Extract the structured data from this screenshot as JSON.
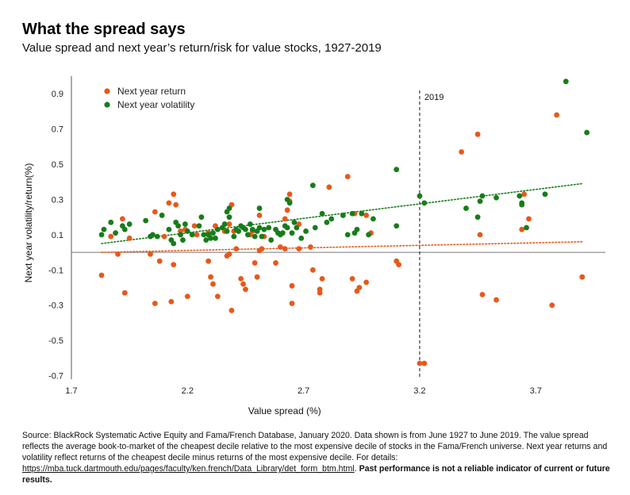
{
  "title": "What the spread says",
  "subtitle": "Value spread and next year’s return/risk for value stocks, 1927-2019",
  "source": {
    "text": "Source: BlackRock Systematic Active Equity and Fama/French Database, January 2020. Data shown is from June 1927 to June 2019. The value spread reflects the average book-to-market of the cheapest decile relative to the most expensive decile of stocks in the Fama/French universe. Next year returns and volatility reflect returns of the cheapest decile minus returns of the most expensive decile. For details: ",
    "link": "https://mba.tuck.dartmouth.edu/pages/faculty/ken.french/Data_Library/det_form_btm.html",
    "link_suffix": ". ",
    "disclaimer": "Past performance is not a reliable indicator of current or future results."
  },
  "chart_data": {
    "type": "scatter",
    "xlabel": "Value spread (%)",
    "ylabel": "Next year volatility/return(%)",
    "xlim": [
      1.7,
      4.0
    ],
    "ylim": [
      -0.72,
      1.0
    ],
    "xticks": [
      1.7,
      2.2,
      2.7,
      3.2,
      3.7
    ],
    "xtick_labels": [
      "1.7",
      "2.2",
      "2.7",
      "3.2",
      "3.7"
    ],
    "yticks": [
      0.9,
      0.7,
      0.5,
      0.3,
      0.1,
      -0.1,
      -0.3,
      -0.5,
      -0.7
    ],
    "ytick_labels": [
      "0.9",
      "0.7",
      "0.5",
      "0.3",
      "0.1",
      "-0.1",
      "-0.3",
      "-0.5",
      "-0.7"
    ],
    "grid": false,
    "zero_line": true,
    "legend_position": "top-left",
    "annotation": {
      "x": 3.2,
      "label": "2019",
      "style": "dashed vertical line"
    },
    "series": [
      {
        "name": "Next year return",
        "color": "#e8581b",
        "trend": {
          "type": "linear",
          "style": "dotted",
          "start": [
            1.83,
            0.0
          ],
          "end": [
            3.9,
            0.06
          ]
        },
        "points": [
          [
            1.83,
            -0.13
          ],
          [
            1.87,
            0.09
          ],
          [
            1.9,
            -0.01
          ],
          [
            1.92,
            0.19
          ],
          [
            1.93,
            -0.23
          ],
          [
            1.95,
            0.08
          ],
          [
            2.04,
            -0.01
          ],
          [
            2.06,
            0.23
          ],
          [
            2.06,
            -0.29
          ],
          [
            2.08,
            -0.05
          ],
          [
            2.1,
            0.09
          ],
          [
            2.12,
            0.28
          ],
          [
            2.13,
            -0.28
          ],
          [
            2.14,
            0.33
          ],
          [
            2.14,
            -0.07
          ],
          [
            2.15,
            0.27
          ],
          [
            2.17,
            0.12
          ],
          [
            2.19,
            0.13
          ],
          [
            2.2,
            -0.25
          ],
          [
            2.23,
            0.15
          ],
          [
            2.24,
            0.1
          ],
          [
            2.29,
            0.11
          ],
          [
            2.29,
            -0.05
          ],
          [
            2.3,
            -0.14
          ],
          [
            2.31,
            -0.18
          ],
          [
            2.32,
            0.15
          ],
          [
            2.33,
            -0.25
          ],
          [
            2.36,
            0.12
          ],
          [
            2.37,
            -0.02
          ],
          [
            2.38,
            -0.01
          ],
          [
            2.38,
            0.16
          ],
          [
            2.39,
            -0.33
          ],
          [
            2.39,
            0.27
          ],
          [
            2.4,
            0.12
          ],
          [
            2.41,
            0.02
          ],
          [
            2.43,
            -0.15
          ],
          [
            2.44,
            -0.18
          ],
          [
            2.45,
            -0.21
          ],
          [
            2.47,
            0.1
          ],
          [
            2.48,
            0.12
          ],
          [
            2.49,
            -0.06
          ],
          [
            2.5,
            -0.14
          ],
          [
            2.51,
            0.21
          ],
          [
            2.51,
            0.01
          ],
          [
            2.52,
            0.02
          ],
          [
            2.53,
            0.09
          ],
          [
            2.58,
            -0.06
          ],
          [
            2.6,
            0.03
          ],
          [
            2.62,
            0.19
          ],
          [
            2.62,
            0.02
          ],
          [
            2.63,
            0.24
          ],
          [
            2.64,
            0.29
          ],
          [
            2.64,
            0.33
          ],
          [
            2.65,
            -0.29
          ],
          [
            2.65,
            -0.19
          ],
          [
            2.68,
            0.16
          ],
          [
            2.68,
            0.02
          ],
          [
            2.73,
            0.03
          ],
          [
            2.74,
            -0.1
          ],
          [
            2.77,
            -0.23
          ],
          [
            2.77,
            -0.21
          ],
          [
            2.78,
            -0.15
          ],
          [
            2.81,
            0.37
          ],
          [
            2.89,
            0.43
          ],
          [
            2.91,
            -0.15
          ],
          [
            2.92,
            0.22
          ],
          [
            2.93,
            -0.22
          ],
          [
            2.94,
            -0.2
          ],
          [
            2.97,
            0.21
          ],
          [
            2.97,
            -0.17
          ],
          [
            2.99,
            0.11
          ],
          [
            3.1,
            -0.05
          ],
          [
            3.11,
            -0.07
          ],
          [
            3.2,
            -0.63
          ],
          [
            3.22,
            -0.63
          ],
          [
            3.38,
            0.57
          ],
          [
            3.45,
            0.67
          ],
          [
            3.46,
            0.1
          ],
          [
            3.47,
            -0.24
          ],
          [
            3.53,
            -0.27
          ],
          [
            3.64,
            0.13
          ],
          [
            3.65,
            0.33
          ],
          [
            3.67,
            0.19
          ],
          [
            3.77,
            -0.3
          ],
          [
            3.79,
            0.78
          ],
          [
            3.9,
            -0.14
          ]
        ]
      },
      {
        "name": "Next year volatility",
        "color": "#167d1a",
        "trend": {
          "type": "linear",
          "style": "dotted",
          "start": [
            1.83,
            0.05
          ],
          "end": [
            3.9,
            0.39
          ]
        },
        "points": [
          [
            1.83,
            0.1
          ],
          [
            1.84,
            0.13
          ],
          [
            1.87,
            0.17
          ],
          [
            1.89,
            0.11
          ],
          [
            1.92,
            0.15
          ],
          [
            1.93,
            0.13
          ],
          [
            1.95,
            0.16
          ],
          [
            2.02,
            0.18
          ],
          [
            2.04,
            0.09
          ],
          [
            2.05,
            0.1
          ],
          [
            2.07,
            0.09
          ],
          [
            2.09,
            0.21
          ],
          [
            2.12,
            0.13
          ],
          [
            2.13,
            0.07
          ],
          [
            2.14,
            0.05
          ],
          [
            2.15,
            0.17
          ],
          [
            2.16,
            0.15
          ],
          [
            2.17,
            0.1
          ],
          [
            2.18,
            0.07
          ],
          [
            2.19,
            0.16
          ],
          [
            2.2,
            0.12
          ],
          [
            2.22,
            0.1
          ],
          [
            2.25,
            0.15
          ],
          [
            2.26,
            0.2
          ],
          [
            2.27,
            0.1
          ],
          [
            2.28,
            0.07
          ],
          [
            2.29,
            0.1
          ],
          [
            2.3,
            0.08
          ],
          [
            2.31,
            0.11
          ],
          [
            2.32,
            0.08
          ],
          [
            2.33,
            0.13
          ],
          [
            2.35,
            0.14
          ],
          [
            2.36,
            0.16
          ],
          [
            2.37,
            0.23
          ],
          [
            2.37,
            0.12
          ],
          [
            2.38,
            0.25
          ],
          [
            2.38,
            0.2
          ],
          [
            2.4,
            0.09
          ],
          [
            2.41,
            0.13
          ],
          [
            2.42,
            0.12
          ],
          [
            2.43,
            0.15
          ],
          [
            2.44,
            0.14
          ],
          [
            2.45,
            0.13
          ],
          [
            2.46,
            0.1
          ],
          [
            2.47,
            0.16
          ],
          [
            2.48,
            0.13
          ],
          [
            2.49,
            0.09
          ],
          [
            2.5,
            0.12
          ],
          [
            2.51,
            0.25
          ],
          [
            2.51,
            0.14
          ],
          [
            2.52,
            0.09
          ],
          [
            2.53,
            0.13
          ],
          [
            2.55,
            0.14
          ],
          [
            2.56,
            0.07
          ],
          [
            2.58,
            0.13
          ],
          [
            2.59,
            0.11
          ],
          [
            2.6,
            0.1
          ],
          [
            2.61,
            0.11
          ],
          [
            2.62,
            0.15
          ],
          [
            2.63,
            0.14
          ],
          [
            2.63,
            0.3
          ],
          [
            2.64,
            0.28
          ],
          [
            2.65,
            0.11
          ],
          [
            2.66,
            0.17
          ],
          [
            2.67,
            0.14
          ],
          [
            2.69,
            0.08
          ],
          [
            2.71,
            0.12
          ],
          [
            2.74,
            0.38
          ],
          [
            2.75,
            0.14
          ],
          [
            2.78,
            0.22
          ],
          [
            2.8,
            0.17
          ],
          [
            2.82,
            0.19
          ],
          [
            2.87,
            0.21
          ],
          [
            2.89,
            0.1
          ],
          [
            2.91,
            0.22
          ],
          [
            2.92,
            0.11
          ],
          [
            2.93,
            0.13
          ],
          [
            2.95,
            0.22
          ],
          [
            2.98,
            0.1
          ],
          [
            3.0,
            0.19
          ],
          [
            3.1,
            0.47
          ],
          [
            3.1,
            0.15
          ],
          [
            3.2,
            0.32
          ],
          [
            3.22,
            0.28
          ],
          [
            3.4,
            0.25
          ],
          [
            3.45,
            0.2
          ],
          [
            3.46,
            0.29
          ],
          [
            3.47,
            0.32
          ],
          [
            3.53,
            0.31
          ],
          [
            3.63,
            0.32
          ],
          [
            3.64,
            0.28
          ],
          [
            3.64,
            0.27
          ],
          [
            3.66,
            0.14
          ],
          [
            3.74,
            0.33
          ],
          [
            3.83,
            0.97
          ],
          [
            3.92,
            0.68
          ]
        ]
      }
    ]
  }
}
